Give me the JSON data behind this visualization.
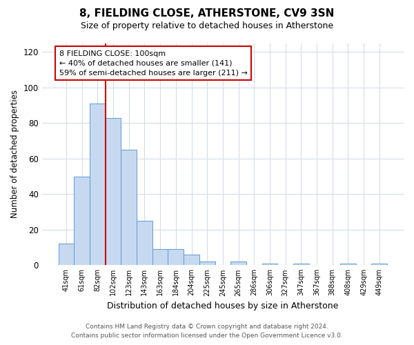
{
  "title": "8, FIELDING CLOSE, ATHERSTONE, CV9 3SN",
  "subtitle": "Size of property relative to detached houses in Atherstone",
  "xlabel": "Distribution of detached houses by size in Atherstone",
  "ylabel": "Number of detached properties",
  "bar_labels": [
    "41sqm",
    "61sqm",
    "82sqm",
    "102sqm",
    "123sqm",
    "143sqm",
    "163sqm",
    "184sqm",
    "204sqm",
    "225sqm",
    "245sqm",
    "265sqm",
    "286sqm",
    "306sqm",
    "327sqm",
    "347sqm",
    "367sqm",
    "388sqm",
    "408sqm",
    "429sqm",
    "449sqm"
  ],
  "bar_heights": [
    12,
    50,
    91,
    83,
    65,
    25,
    9,
    9,
    6,
    2,
    0,
    2,
    0,
    1,
    0,
    1,
    0,
    0,
    1,
    0,
    1
  ],
  "bar_color": "#c6d9f0",
  "bar_edge_color": "#5b9bd5",
  "ylim": [
    0,
    125
  ],
  "yticks": [
    0,
    20,
    40,
    60,
    80,
    100,
    120
  ],
  "vline_x_index": 3,
  "vline_color": "#cc0000",
  "annotation_title": "8 FIELDING CLOSE: 100sqm",
  "annotation_line1": "← 40% of detached houses are smaller (141)",
  "annotation_line2": "59% of semi-detached houses are larger (211) →",
  "annotation_box_color": "#ffffff",
  "annotation_box_edge": "#cc0000",
  "footer_line1": "Contains HM Land Registry data © Crown copyright and database right 2024.",
  "footer_line2": "Contains public sector information licensed under the Open Government Licence v3.0.",
  "background_color": "#ffffff",
  "grid_color": "#d4dce8"
}
